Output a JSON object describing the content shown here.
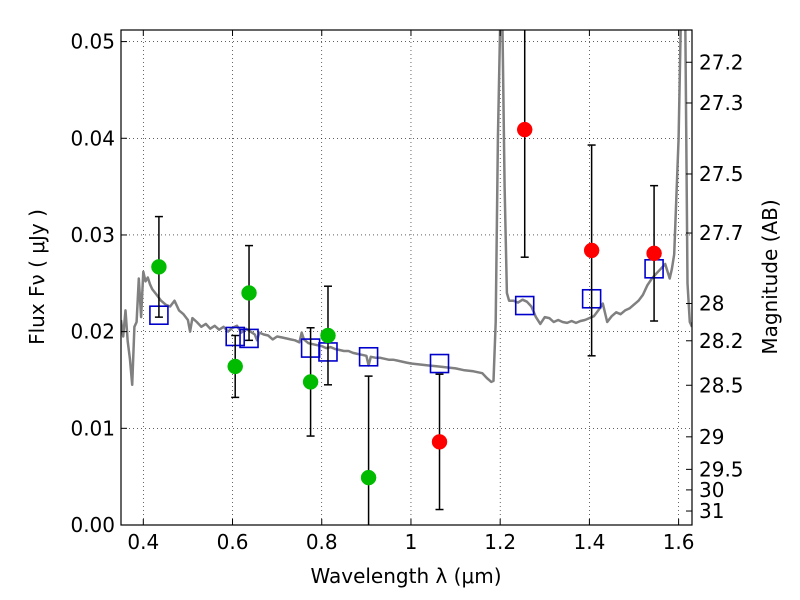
{
  "chart_data": {
    "type": "scatter",
    "xlabel": "Wavelength  λ (μm)",
    "ylabel": "Flux  Fν  ( μJy )",
    "y2label": "Magnitude (AB)",
    "xlim": [
      0.35,
      1.63
    ],
    "ylim": [
      0.0,
      0.0512
    ],
    "grid": true,
    "x_ticks": [
      0.4,
      0.6,
      0.8,
      1.0,
      1.2,
      1.4,
      1.6
    ],
    "x_tick_labels": [
      "0.4",
      "0.6",
      "0.8",
      "1",
      "1.2",
      "1.4",
      "1.6"
    ],
    "y_ticks": [
      0.0,
      0.01,
      0.02,
      0.03,
      0.04,
      0.05
    ],
    "y_tick_labels": [
      "0.00",
      "0.01",
      "0.02",
      "0.03",
      "0.04",
      "0.05"
    ],
    "mag_ticks": [
      27.2,
      27.3,
      27.5,
      27.7,
      28,
      28.2,
      28.5,
      29,
      29.5,
      30,
      31
    ],
    "mag_tick_labels": [
      "27.2",
      "27.3",
      "27.5",
      "27.7",
      "28",
      "28.2",
      "28.5",
      "29",
      "29.5",
      "30",
      "31"
    ],
    "colors": {
      "green": "#00bb00",
      "red": "#ff0000",
      "model_box": "#0000cc",
      "sed": "#808080",
      "errorbar": "#000000"
    },
    "model_sed": [
      [
        0.35,
        0.0212
      ],
      [
        0.355,
        0.0195
      ],
      [
        0.36,
        0.0222
      ],
      [
        0.365,
        0.019
      ],
      [
        0.37,
        0.0172
      ],
      [
        0.375,
        0.0145
      ],
      [
        0.38,
        0.0205
      ],
      [
        0.385,
        0.021
      ],
      [
        0.39,
        0.0255
      ],
      [
        0.395,
        0.0215
      ],
      [
        0.4,
        0.0262
      ],
      [
        0.405,
        0.0252
      ],
      [
        0.41,
        0.0256
      ],
      [
        0.415,
        0.0249
      ],
      [
        0.42,
        0.0244
      ],
      [
        0.43,
        0.0238
      ],
      [
        0.44,
        0.0232
      ],
      [
        0.45,
        0.0228
      ],
      [
        0.46,
        0.0226
      ],
      [
        0.47,
        0.0232
      ],
      [
        0.48,
        0.0222
      ],
      [
        0.49,
        0.0218
      ],
      [
        0.5,
        0.0212
      ],
      [
        0.505,
        0.02
      ],
      [
        0.51,
        0.0214
      ],
      [
        0.52,
        0.021
      ],
      [
        0.53,
        0.0205
      ],
      [
        0.54,
        0.0208
      ],
      [
        0.55,
        0.0203
      ],
      [
        0.56,
        0.0206
      ],
      [
        0.57,
        0.0202
      ],
      [
        0.58,
        0.0205
      ],
      [
        0.59,
        0.02
      ],
      [
        0.6,
        0.0204
      ],
      [
        0.61,
        0.0206
      ],
      [
        0.62,
        0.0199
      ],
      [
        0.63,
        0.0203
      ],
      [
        0.64,
        0.02
      ],
      [
        0.65,
        0.0197
      ],
      [
        0.655,
        0.0191
      ],
      [
        0.66,
        0.0199
      ],
      [
        0.67,
        0.0197
      ],
      [
        0.68,
        0.0196
      ],
      [
        0.69,
        0.0192
      ],
      [
        0.7,
        0.0195
      ],
      [
        0.71,
        0.0194
      ],
      [
        0.72,
        0.0193
      ],
      [
        0.73,
        0.0192
      ],
      [
        0.74,
        0.0191
      ],
      [
        0.75,
        0.0189
      ],
      [
        0.755,
        0.0199
      ],
      [
        0.76,
        0.0192
      ],
      [
        0.77,
        0.0188
      ],
      [
        0.78,
        0.0187
      ],
      [
        0.79,
        0.0186
      ],
      [
        0.8,
        0.0185
      ],
      [
        0.81,
        0.0183
      ],
      [
        0.82,
        0.0184
      ],
      [
        0.83,
        0.0182
      ],
      [
        0.84,
        0.0181
      ],
      [
        0.85,
        0.018
      ],
      [
        0.86,
        0.018
      ],
      [
        0.87,
        0.0178
      ],
      [
        0.88,
        0.0177
      ],
      [
        0.89,
        0.0176
      ],
      [
        0.9,
        0.0175
      ],
      [
        0.905,
        0.0165
      ],
      [
        0.91,
        0.0174
      ],
      [
        0.92,
        0.0173
      ],
      [
        0.93,
        0.0173
      ],
      [
        0.94,
        0.0172
      ],
      [
        0.95,
        0.0171
      ],
      [
        0.96,
        0.0171
      ],
      [
        0.97,
        0.017
      ],
      [
        0.98,
        0.0169
      ],
      [
        0.99,
        0.0168
      ],
      [
        1.0,
        0.0167
      ],
      [
        1.02,
        0.0166
      ],
      [
        1.04,
        0.0165
      ],
      [
        1.06,
        0.0164
      ],
      [
        1.08,
        0.0163
      ],
      [
        1.1,
        0.0162
      ],
      [
        1.12,
        0.016
      ],
      [
        1.14,
        0.0159
      ],
      [
        1.16,
        0.0157
      ],
      [
        1.17,
        0.0152
      ],
      [
        1.18,
        0.0148
      ],
      [
        1.185,
        0.0149
      ],
      [
        1.19,
        0.021
      ],
      [
        1.195,
        0.04
      ],
      [
        1.2,
        0.052
      ],
      [
        1.205,
        0.052
      ],
      [
        1.21,
        0.035
      ],
      [
        1.215,
        0.024
      ],
      [
        1.22,
        0.0232
      ],
      [
        1.23,
        0.0232
      ],
      [
        1.24,
        0.023
      ],
      [
        1.25,
        0.0233
      ],
      [
        1.26,
        0.0231
      ],
      [
        1.27,
        0.0226
      ],
      [
        1.28,
        0.0215
      ],
      [
        1.29,
        0.0208
      ],
      [
        1.3,
        0.0215
      ],
      [
        1.31,
        0.0214
      ],
      [
        1.32,
        0.021
      ],
      [
        1.33,
        0.0212
      ],
      [
        1.34,
        0.021
      ],
      [
        1.35,
        0.0209
      ],
      [
        1.36,
        0.0211
      ],
      [
        1.37,
        0.0209
      ],
      [
        1.38,
        0.0211
      ],
      [
        1.39,
        0.0212
      ],
      [
        1.4,
        0.0214
      ],
      [
        1.41,
        0.0216
      ],
      [
        1.42,
        0.0222
      ],
      [
        1.43,
        0.0229
      ],
      [
        1.44,
        0.021
      ],
      [
        1.45,
        0.0216
      ],
      [
        1.46,
        0.022
      ],
      [
        1.47,
        0.0218
      ],
      [
        1.48,
        0.0222
      ],
      [
        1.49,
        0.0224
      ],
      [
        1.5,
        0.0228
      ],
      [
        1.51,
        0.0232
      ],
      [
        1.52,
        0.0238
      ],
      [
        1.53,
        0.0248
      ],
      [
        1.54,
        0.0255
      ],
      [
        1.55,
        0.026
      ],
      [
        1.56,
        0.0265
      ],
      [
        1.57,
        0.027
      ],
      [
        1.58,
        0.0255
      ],
      [
        1.585,
        0.0265
      ],
      [
        1.59,
        0.028
      ],
      [
        1.6,
        0.04
      ],
      [
        1.605,
        0.052
      ],
      [
        1.615,
        0.052
      ],
      [
        1.62,
        0.025
      ],
      [
        1.625,
        0.021
      ],
      [
        1.63,
        0.0205
      ]
    ],
    "model_boxes": [
      {
        "x": 0.435,
        "y": 0.0217
      },
      {
        "x": 0.606,
        "y": 0.0195
      },
      {
        "x": 0.637,
        "y": 0.0193
      },
      {
        "x": 0.775,
        "y": 0.0183
      },
      {
        "x": 0.814,
        "y": 0.0179
      },
      {
        "x": 0.905,
        "y": 0.0174
      },
      {
        "x": 1.064,
        "y": 0.0167
      },
      {
        "x": 1.255,
        "y": 0.0227
      },
      {
        "x": 1.405,
        "y": 0.0234
      },
      {
        "x": 1.545,
        "y": 0.0265
      }
    ],
    "observed_green": [
      {
        "x": 0.435,
        "y": 0.0267,
        "err": 0.0052
      },
      {
        "x": 0.606,
        "y": 0.0164,
        "err": 0.0032
      },
      {
        "x": 0.637,
        "y": 0.024,
        "err": 0.0049
      },
      {
        "x": 0.775,
        "y": 0.0148,
        "err": 0.0056
      },
      {
        "x": 0.814,
        "y": 0.0196,
        "err": 0.0051
      },
      {
        "x": 0.905,
        "y": 0.0049,
        "err": 0.0105
      }
    ],
    "observed_red": [
      {
        "x": 1.064,
        "y": 0.0086,
        "err": 0.007
      },
      {
        "x": 1.255,
        "y": 0.0409,
        "err": 0.0132
      },
      {
        "x": 1.405,
        "y": 0.0284,
        "err": 0.0109
      },
      {
        "x": 1.545,
        "y": 0.0281,
        "err": 0.007
      }
    ]
  }
}
